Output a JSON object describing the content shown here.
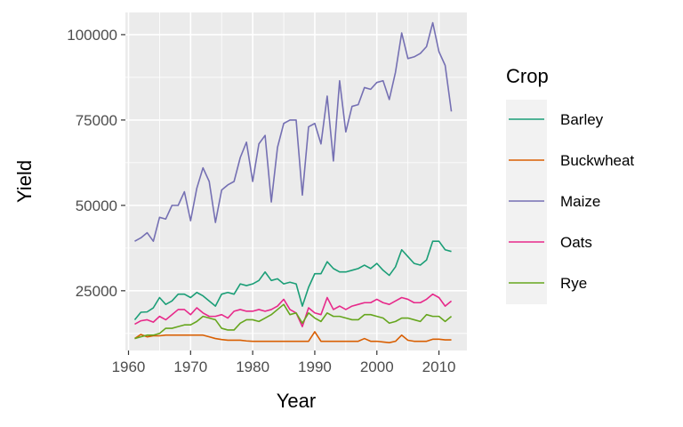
{
  "chart_data": {
    "type": "line",
    "title": "",
    "xlabel": "Year",
    "ylabel": "Yield",
    "legend_title": "Crop",
    "legend_position": "right",
    "xlim": [
      1959.5,
      2014.5
    ],
    "ylim": [
      7500,
      106500
    ],
    "x_ticks": [
      1960,
      1970,
      1980,
      1990,
      2000,
      2010
    ],
    "y_ticks": [
      25000,
      50000,
      75000,
      100000
    ],
    "x_tick_labels": [
      "1960",
      "1970",
      "1980",
      "1990",
      "2000",
      "2010"
    ],
    "y_tick_labels": [
      "25000",
      "50000",
      "75000",
      "100000"
    ],
    "grid": true,
    "x": [
      1961,
      1962,
      1963,
      1964,
      1965,
      1966,
      1967,
      1968,
      1969,
      1970,
      1971,
      1972,
      1973,
      1974,
      1975,
      1976,
      1977,
      1978,
      1979,
      1980,
      1981,
      1982,
      1983,
      1984,
      1985,
      1986,
      1987,
      1988,
      1989,
      1990,
      1991,
      1992,
      1993,
      1994,
      1995,
      1996,
      1997,
      1998,
      1999,
      2000,
      2001,
      2002,
      2003,
      2004,
      2005,
      2006,
      2007,
      2008,
      2009,
      2010,
      2011,
      2012
    ],
    "series": [
      {
        "name": "Barley",
        "color": "#1B9E77",
        "values": [
          16500,
          18700,
          18800,
          20000,
          23000,
          21000,
          22000,
          24000,
          24000,
          23000,
          24500,
          23500,
          22000,
          20500,
          24000,
          24500,
          24000,
          27000,
          26500,
          27000,
          28000,
          30500,
          28000,
          28500,
          27000,
          27500,
          27000,
          20500,
          26000,
          30000,
          30000,
          33500,
          31500,
          30500,
          30500,
          31000,
          31500,
          32500,
          31500,
          33000,
          31000,
          29500,
          32000,
          37000,
          35000,
          33000,
          32500,
          34000,
          39500,
          39500,
          37000,
          36500
        ]
      },
      {
        "name": "Buckwheat",
        "color": "#D95F02",
        "values": [
          11000,
          12200,
          11500,
          11800,
          11800,
          12000,
          12000,
          12000,
          12000,
          12000,
          12000,
          12000,
          11500,
          11000,
          10700,
          10500,
          10500,
          10500,
          10300,
          10200,
          10200,
          10200,
          10200,
          10200,
          10200,
          10200,
          10200,
          10200,
          10200,
          13000,
          10200,
          10200,
          10200,
          10200,
          10200,
          10200,
          10200,
          11000,
          10200,
          10200,
          10000,
          9800,
          10200,
          12000,
          10500,
          10200,
          10200,
          10200,
          10800,
          10800,
          10600,
          10600
        ]
      },
      {
        "name": "Maize",
        "color": "#7570B3",
        "values": [
          39500,
          40500,
          42000,
          39500,
          46500,
          46000,
          50000,
          50000,
          54000,
          45500,
          55000,
          61000,
          57000,
          45000,
          54500,
          56000,
          57000,
          64000,
          68500,
          57000,
          68000,
          70500,
          51000,
          67000,
          74000,
          75000,
          75000,
          53000,
          73000,
          74000,
          68000,
          82000,
          63000,
          86500,
          71500,
          79000,
          79500,
          84500,
          84000,
          86000,
          86500,
          81000,
          89000,
          100500,
          93000,
          93500,
          94500,
          96500,
          103500,
          95000,
          91000,
          77500
        ]
      },
      {
        "name": "Oats",
        "color": "#E7298A",
        "values": [
          15200,
          16200,
          16500,
          15800,
          17500,
          16500,
          18000,
          19500,
          19500,
          18000,
          20000,
          18500,
          17500,
          17500,
          18000,
          17000,
          19000,
          19500,
          19000,
          19000,
          19500,
          19000,
          19500,
          20500,
          22500,
          19500,
          18500,
          14500,
          20000,
          18500,
          18000,
          23000,
          19500,
          20500,
          19500,
          20500,
          21000,
          21500,
          21500,
          22500,
          21500,
          21000,
          22000,
          23000,
          22500,
          21500,
          21500,
          22500,
          24000,
          23000,
          20500,
          22000
        ]
      },
      {
        "name": "Rye",
        "color": "#66A61E",
        "values": [
          11000,
          11500,
          12000,
          12000,
          12500,
          14000,
          14000,
          14500,
          15000,
          15000,
          16000,
          17500,
          17000,
          16500,
          14000,
          13500,
          13500,
          15500,
          16500,
          16500,
          16000,
          17000,
          18000,
          19500,
          21000,
          18000,
          18500,
          15500,
          18500,
          17000,
          16000,
          18500,
          17500,
          17500,
          17000,
          16500,
          16500,
          18000,
          18000,
          17500,
          17000,
          15500,
          16000,
          17000,
          17000,
          16500,
          16000,
          18000,
          17500,
          17500,
          16000,
          17500
        ]
      }
    ]
  }
}
